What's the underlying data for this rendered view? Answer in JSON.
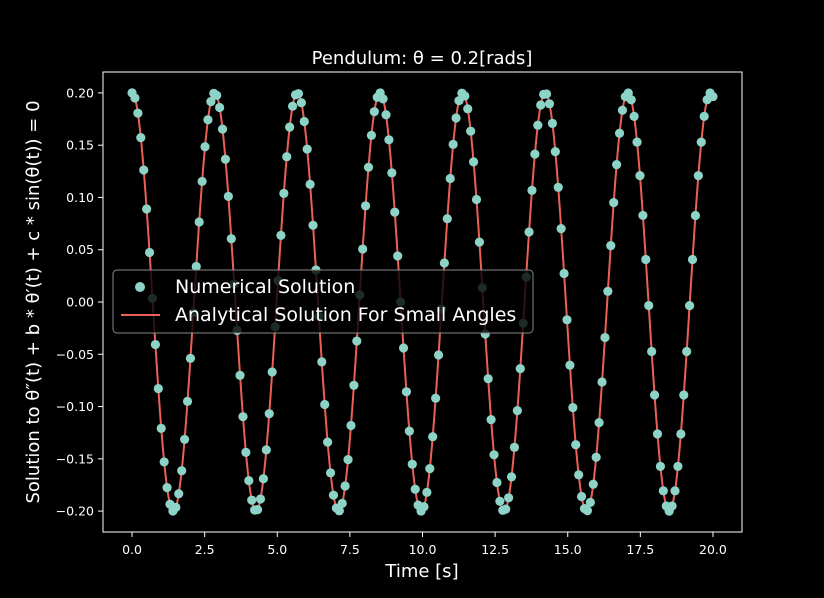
{
  "chart_data": {
    "type": "line",
    "title": "Pendulum: θ = 0.2[rads]",
    "xlabel": "Time [s]",
    "ylabel": "Solution to θ″(t) + b * θ′(t) + c * sin(θ(t)) = 0",
    "xlim": [
      -1.0,
      21.0
    ],
    "ylim": [
      -0.22,
      0.22
    ],
    "xticks": [
      0.0,
      2.5,
      5.0,
      7.5,
      10.0,
      12.5,
      15.0,
      17.5,
      20.0
    ],
    "xtick_labels": [
      "0.0",
      "2.5",
      "5.0",
      "7.5",
      "10.0",
      "12.5",
      "15.0",
      "17.5",
      "20.0"
    ],
    "yticks": [
      -0.2,
      -0.15,
      -0.1,
      -0.05,
      0.0,
      0.05,
      0.1,
      0.15,
      0.2
    ],
    "ytick_labels": [
      "−0.20",
      "−0.15",
      "−0.10",
      "−0.05",
      "0.00",
      "0.05",
      "0.10",
      "0.15",
      "0.20"
    ],
    "grid": false,
    "legend": "center-left",
    "colors": {
      "background": "#000000",
      "numerical": "#8dd3c7",
      "analytical": "#ec6056",
      "axes": "#ffffff"
    },
    "series": [
      {
        "name": "Numerical Solution",
        "kind": "scatter",
        "amplitude": 0.2,
        "period": 2.845,
        "x_start": 0.0,
        "x_end": 20.0,
        "samples": 200
      },
      {
        "name": "Analytical Solution For Small Angles",
        "kind": "line",
        "amplitude": 0.2,
        "period": 2.845,
        "x_start": 0.0,
        "x_end": 20.0
      }
    ]
  }
}
